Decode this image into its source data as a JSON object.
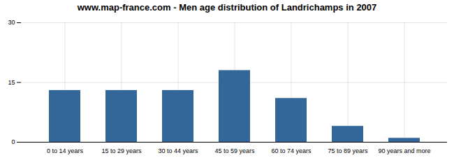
{
  "chart_data": {
    "type": "bar",
    "title": "www.map-france.com - Men age distribution of Landrichamps in 2007",
    "categories": [
      "0 to 14 years",
      "15 to 29 years",
      "30 to 44 years",
      "45 to 59 years",
      "60 to 74 years",
      "75 to 89 years",
      "90 years and more"
    ],
    "values": [
      13,
      13,
      13,
      18,
      11,
      4,
      1
    ],
    "color": "#336699",
    "ylim": [
      0,
      30
    ],
    "yticks": [
      0,
      15,
      30
    ],
    "grid": true
  }
}
